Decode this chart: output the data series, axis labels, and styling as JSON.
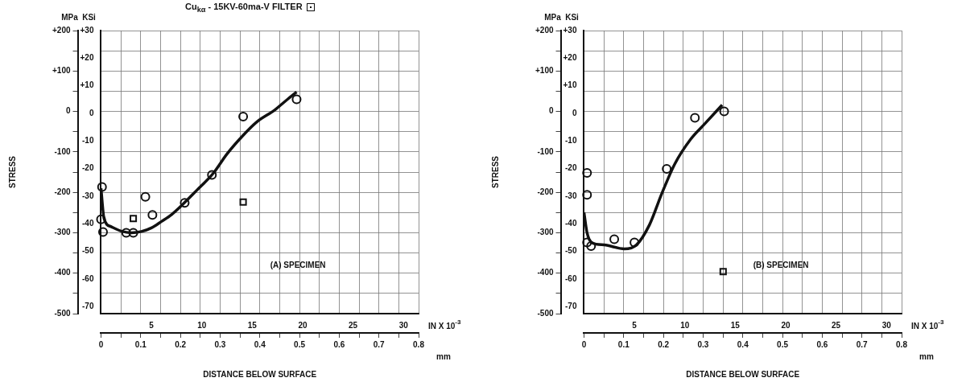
{
  "chart_data": [
    {
      "type": "line",
      "title": "Cu$_{kα}$ - 15KV-60ma-V FILTER",
      "ylabel": "STRESS",
      "xlabel": "DISTANCE BELOW SURFACE",
      "annotations": [
        "MPa",
        "KSi",
        "IN X 10$^{-3}$",
        "mm",
        "(A) SPECIMEN"
      ],
      "xlim": [
        0,
        31.5
      ],
      "xticks": [
        5,
        10,
        15,
        20,
        25,
        30
      ],
      "x2lim": [
        0,
        0.8
      ],
      "x2ticks": [
        0,
        {
          "value": 0.05,
          "label": null
        },
        0.1,
        {
          "value": 0.15,
          "label": null
        },
        0.2,
        {
          "value": 0.25,
          "label": null
        },
        0.3,
        {
          "value": 0.35,
          "label": null
        },
        0.4,
        {
          "value": 0.45,
          "label": null
        },
        0.5,
        {
          "value": 0.55,
          "label": null
        },
        0.6,
        {
          "value": 0.65,
          "label": null
        },
        0.7,
        {
          "value": 0.75,
          "label": null
        },
        0.8
      ],
      "ylim": [
        -500,
        200
      ],
      "yticks": [
        {
          "value": 200,
          "label": "+200"
        },
        {
          "value": 150,
          "label": null
        },
        {
          "value": 100,
          "label": "+100"
        },
        {
          "value": 50,
          "label": null
        },
        0,
        {
          "value": -50,
          "label": null
        },
        -100,
        {
          "value": -150,
          "label": null
        },
        -200,
        {
          "value": -250,
          "label": null
        },
        -300,
        {
          "value": -350,
          "label": null
        },
        -400,
        {
          "value": -450,
          "label": null
        },
        -500
      ],
      "y2lim": [
        -72.5,
        30
      ],
      "y2ticks": [
        {
          "value": 30,
          "label": "+30"
        },
        {
          "value": 20,
          "label": "+20"
        },
        {
          "value": 10,
          "label": "+10"
        },
        0,
        -10,
        -20,
        -30,
        -40,
        -50,
        -60,
        -70
      ],
      "grid": true,
      "legend": false,
      "series": [
        {
          "type": "line",
          "marker": "none",
          "color": "#111111",
          "x": [
            0,
            0.3,
            1,
            2,
            3,
            4,
            5,
            6,
            7,
            8.1,
            9.5,
            11.1,
            12.5,
            14.1,
            15.5,
            17.2,
            18.5,
            19.4
          ],
          "values": [
            -190,
            -265,
            -285,
            -296,
            -300,
            -297,
            -288,
            -272,
            -255,
            -230,
            -195,
            -154,
            -105,
            -59,
            -25,
            3,
            30,
            48
          ]
        },
        {
          "type": "scatter",
          "marker": "circle",
          "color": "#111111",
          "x": [
            0.1,
            0,
            0.2,
            2.5,
            3.2,
            4.4,
            5.1,
            8.3,
            11.0,
            14.1,
            19.4
          ],
          "values": [
            -187,
            -267,
            -298,
            -300,
            -300,
            -211,
            -256,
            -226,
            -157,
            -13,
            30
          ]
        },
        {
          "type": "scatter",
          "marker": "square",
          "color": "#111111",
          "x": [
            3.2,
            14.1
          ],
          "values": [
            -265,
            -224
          ]
        }
      ]
    },
    {
      "type": "line",
      "ylabel": "STRESS",
      "xlabel": "DISTANCE BELOW SURFACE",
      "annotations": [
        "MPa",
        "KSi",
        "IN X 10$^{-3}$",
        "mm",
        "(B) SPECIMEN"
      ],
      "xlim": [
        0,
        31.5
      ],
      "xticks": [
        5,
        10,
        15,
        20,
        25,
        30
      ],
      "x2lim": [
        0,
        0.8
      ],
      "x2ticks": [
        0,
        {
          "value": 0.05,
          "label": null
        },
        0.1,
        {
          "value": 0.15,
          "label": null
        },
        0.2,
        {
          "value": 0.25,
          "label": null
        },
        0.3,
        {
          "value": 0.35,
          "label": null
        },
        0.4,
        {
          "value": 0.45,
          "label": null
        },
        0.5,
        {
          "value": 0.55,
          "label": null
        },
        0.6,
        {
          "value": 0.65,
          "label": null
        },
        0.7,
        {
          "value": 0.75,
          "label": null
        },
        0.8
      ],
      "ylim": [
        -500,
        200
      ],
      "yticks": [
        {
          "value": 200,
          "label": "+200"
        },
        {
          "value": 150,
          "label": null
        },
        {
          "value": 100,
          "label": "+100"
        },
        {
          "value": 50,
          "label": null
        },
        0,
        {
          "value": -50,
          "label": null
        },
        -100,
        {
          "value": -150,
          "label": null
        },
        -200,
        {
          "value": -250,
          "label": null
        },
        -300,
        {
          "value": -350,
          "label": null
        },
        -400,
        {
          "value": -450,
          "label": null
        },
        -500
      ],
      "y2lim": [
        -72.5,
        30
      ],
      "y2ticks": [
        {
          "value": 30,
          "label": "+30"
        },
        {
          "value": 20,
          "label": "+20"
        },
        {
          "value": 10,
          "label": "+10"
        },
        0,
        -10,
        -20,
        -30,
        -40,
        -50,
        -60,
        -70
      ],
      "grid": true,
      "legend": false,
      "series": [
        {
          "type": "line",
          "marker": "none",
          "color": "#111111",
          "x": [
            0,
            0.3,
            0.8,
            2,
            4,
            5.2,
            6.5,
            7.7,
            9,
            10.6,
            12,
            13.7
          ],
          "values": [
            -250,
            -300,
            -325,
            -330,
            -340,
            -330,
            -280,
            -204,
            -130,
            -68,
            -30,
            16
          ]
        },
        {
          "type": "scatter",
          "marker": "circle",
          "color": "#111111",
          "x": [
            0.3,
            0.3,
            0.3,
            0.7,
            3.0,
            5.0,
            8.2,
            11.0,
            13.9
          ],
          "values": [
            -152,
            -206,
            -324,
            -333,
            -316,
            -324,
            -142,
            -16,
            0
          ]
        },
        {
          "type": "scatter",
          "marker": "square",
          "color": "#111111",
          "x": [
            13.8
          ],
          "values": [
            -396
          ]
        }
      ]
    }
  ]
}
